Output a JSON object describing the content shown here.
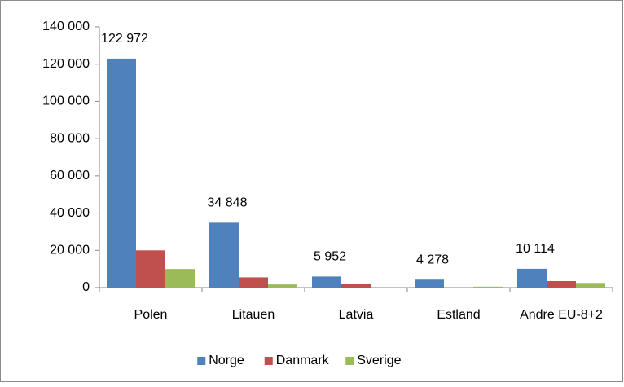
{
  "chart_data": {
    "type": "bar",
    "categories": [
      "Polen",
      "Litauen",
      "Latvia",
      "Estland",
      "Andre EU-8+2"
    ],
    "series": [
      {
        "name": "Norge",
        "color": "#4f81bd",
        "values": [
          122972,
          34848,
          5952,
          4278,
          10114
        ],
        "value_labels": [
          "122 972",
          "34 848",
          "5 952",
          "4 278",
          "10 114"
        ]
      },
      {
        "name": "Danmark",
        "color": "#c0504d",
        "values": [
          20000,
          5500,
          2200,
          0,
          3500
        ]
      },
      {
        "name": "Sverige",
        "color": "#9bbb59",
        "values": [
          10000,
          1700,
          0,
          500,
          2500
        ]
      }
    ],
    "ylim": [
      0,
      140000
    ],
    "yticks": [
      0,
      {
        "value": 20000,
        "label": "20 000"
      },
      {
        "value": 40000,
        "label": "40 000"
      },
      {
        "value": 60000,
        "label": "60 000"
      },
      {
        "value": 80000,
        "label": "80 000"
      },
      {
        "value": 100000,
        "label": "100 000"
      },
      {
        "value": 120000,
        "label": "120 000"
      },
      {
        "value": 140000,
        "label": "140 000"
      }
    ],
    "legend": "bottom"
  }
}
